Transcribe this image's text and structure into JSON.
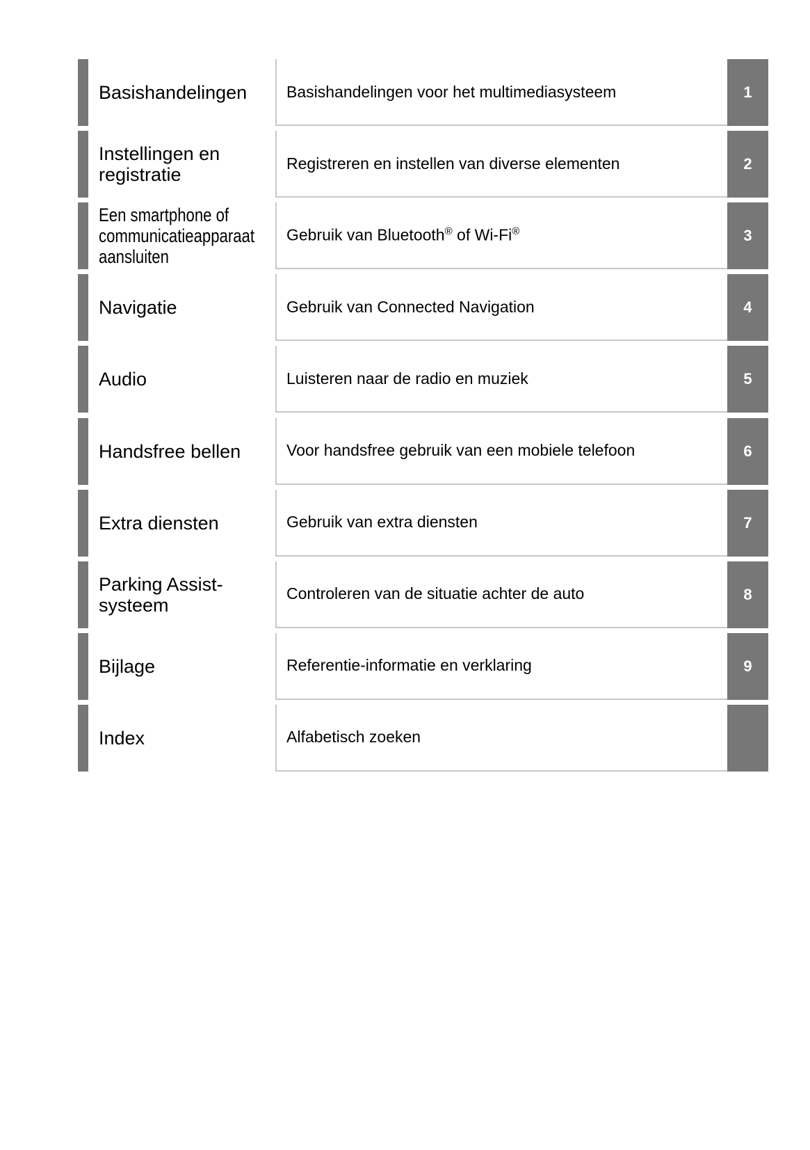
{
  "chapters": [
    {
      "title": "Basishandelingen",
      "description": "Basishandelingen voor het multimediasysteem",
      "number": "1"
    },
    {
      "title": "Instellingen en registratie",
      "description": "Registreren en instellen van diverse elementen",
      "number": "2"
    },
    {
      "title": "Een smartphone of communicatieapparaat aansluiten",
      "description": "Gebruik van Bluetooth® of Wi-Fi®",
      "number": "3"
    },
    {
      "title": "Navigatie",
      "description": "Gebruik van Connected Navigation",
      "number": "4"
    },
    {
      "title": "Audio",
      "description": "Luisteren naar de radio en muziek",
      "number": "5"
    },
    {
      "title": "Handsfree bellen",
      "description": "Voor handsfree gebruik van een mobiele telefoon",
      "number": "6"
    },
    {
      "title": "Extra diensten",
      "description": "Gebruik van extra diensten",
      "number": "7"
    },
    {
      "title": "Parking Assist-systeem",
      "description": "Controleren van de situatie achter de auto",
      "number": "8"
    },
    {
      "title": "Bijlage",
      "description": "Referentie-informatie en verklaring",
      "number": "9"
    },
    {
      "title": "Index",
      "description": "Alfabetisch zoeken",
      "number": ""
    }
  ],
  "colors": {
    "tab": "#777777",
    "border": "#c8c8c8"
  }
}
